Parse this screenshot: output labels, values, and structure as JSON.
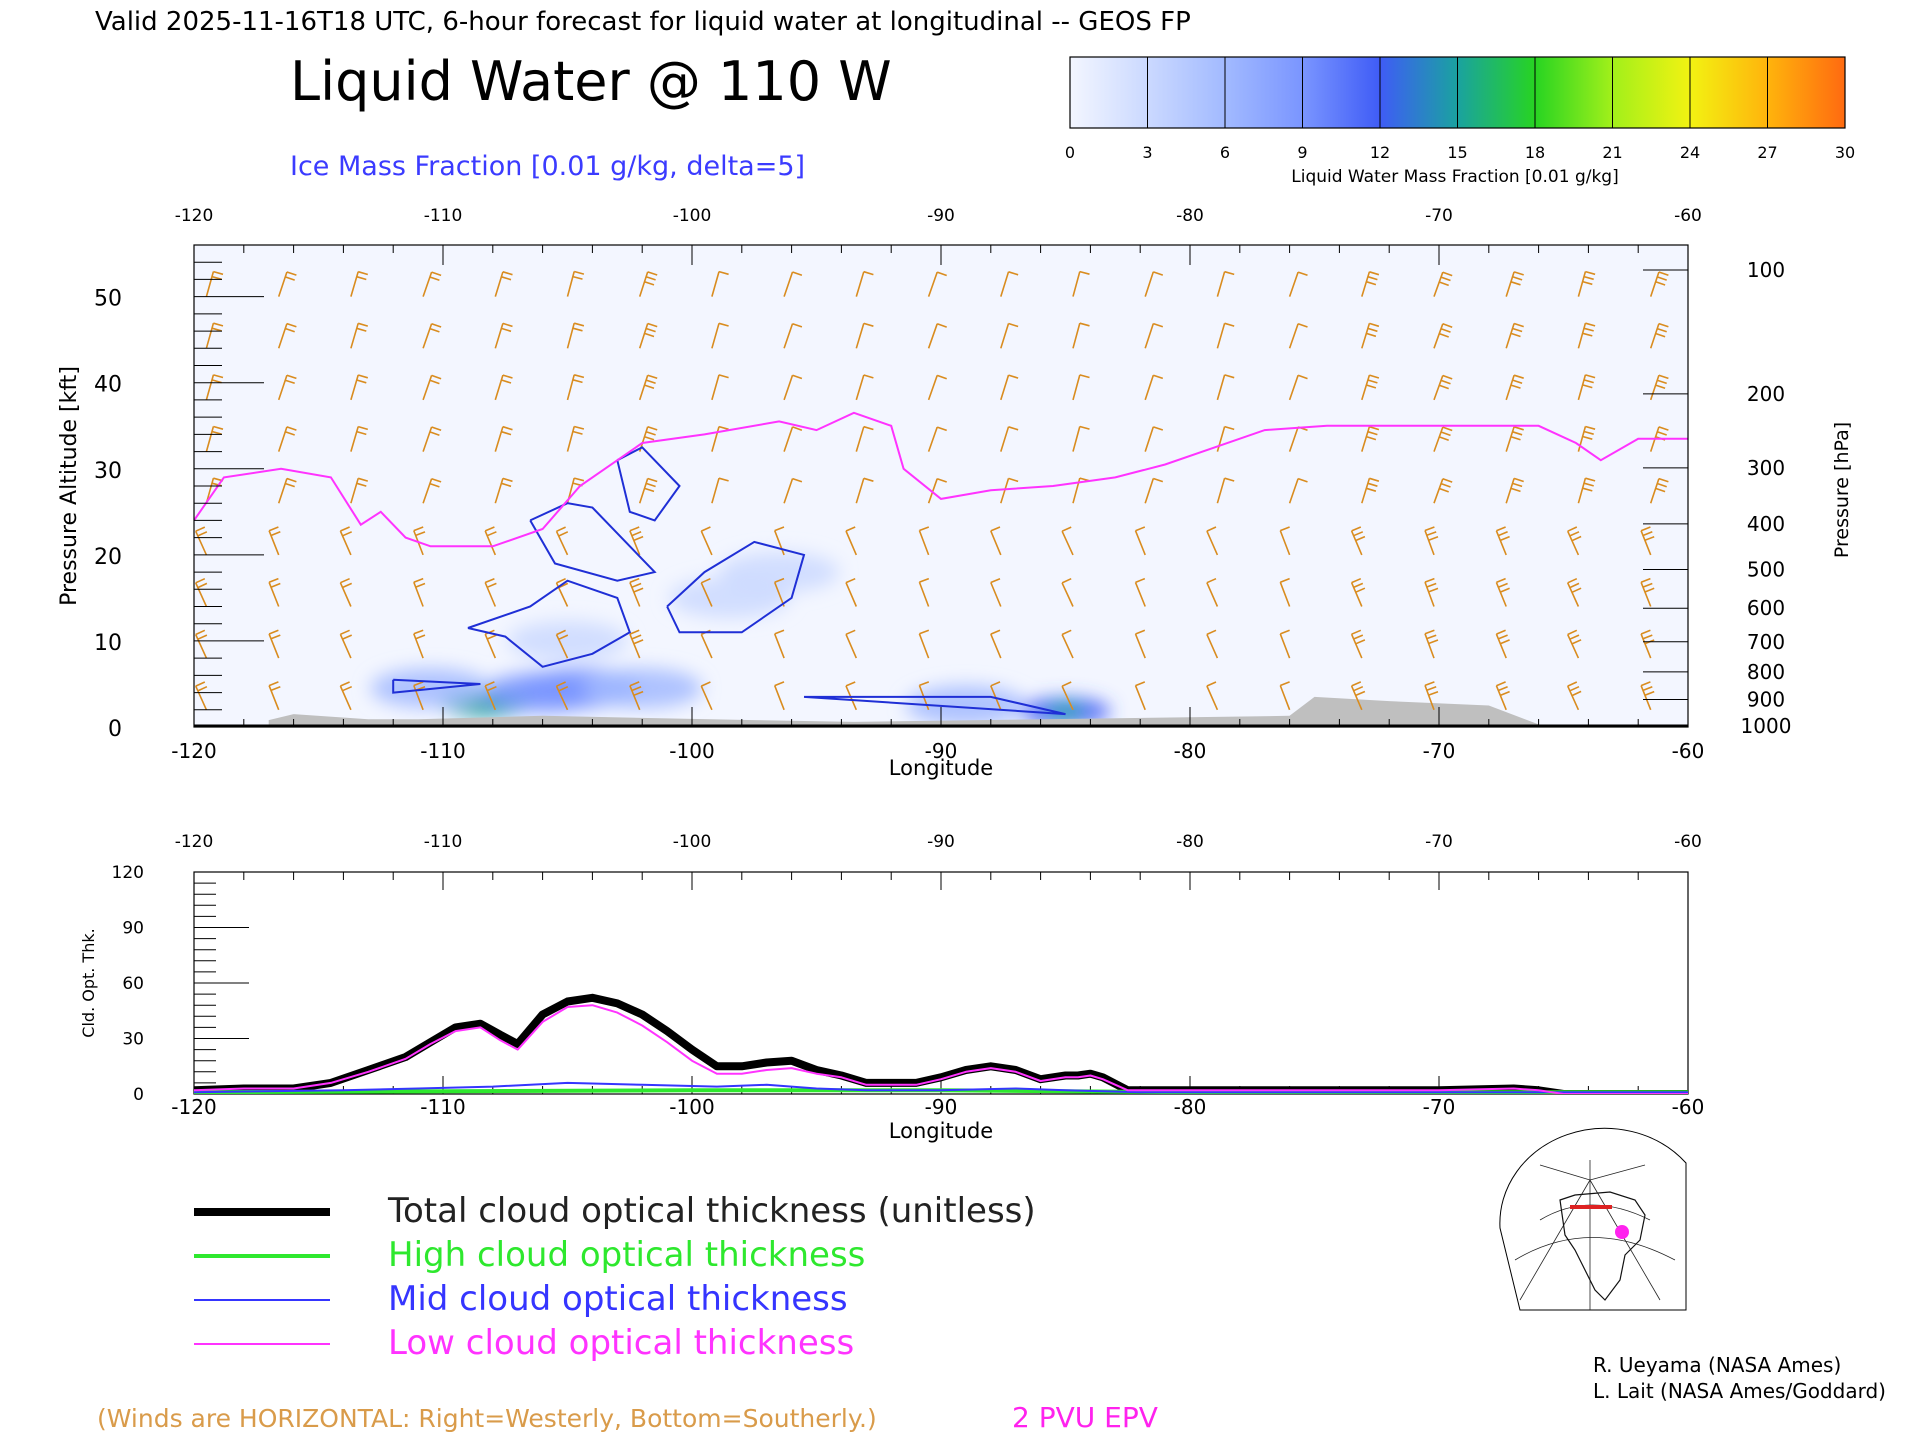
{
  "header": {
    "valid_line": "Valid 2025-11-16T18 UTC, 6-hour forecast for liquid water at longitudinal -- GEOS FP",
    "title": "Liquid Water @ 110 W",
    "ice_label": "Ice Mass Fraction [0.01 g/kg, delta=5]"
  },
  "colorbar": {
    "ticks": [
      "0",
      "3",
      "6",
      "9",
      "12",
      "15",
      "18",
      "21",
      "24",
      "27",
      "30"
    ],
    "label": "Liquid Water Mass Fraction [0.01 g/kg]",
    "colors": [
      "#f3f6ff",
      "#cbd9ff",
      "#a2baff",
      "#7a95ff",
      "#3f5cf6",
      "#1aa2a0",
      "#27d422",
      "#a2f01a",
      "#f2f212",
      "#ffb40c",
      "#ff6a10"
    ]
  },
  "footer": {
    "winds_note": "(Winds are HORIZONTAL: Right=Westerly, Bottom=Southerly.)",
    "epv_label": "2 PVU EPV",
    "credit1": "R. Ueyama (NASA Ames)",
    "credit2": "L. Lait (NASA Ames/Goddard)"
  },
  "legend": [
    {
      "label": "Total cloud optical thickness (unitless)",
      "color": "#000000"
    },
    {
      "label": "High cloud optical thickness",
      "color": "#2ee82e"
    },
    {
      "label": "Mid cloud optical thickness",
      "color": "#3535ff"
    },
    {
      "label": "Low cloud optical thickness",
      "color": "#ff33ff"
    }
  ],
  "colors": {
    "wind": "#d98c1f",
    "epv": "#ff33ff",
    "ice": "#1f2fd6",
    "terrain": "#bfbfbf"
  },
  "chart_data": [
    {
      "type": "heatmap",
      "title": "Liquid Water @ 110 W",
      "xlabel": "Longitude",
      "ylabel": "Pressure Altitude [kft]",
      "y2label": "Pressure [hPa]",
      "xlim": [
        -120,
        -60
      ],
      "ylim": [
        0,
        56
      ],
      "x_ticks": [
        "-120",
        "-110",
        "-100",
        "-90",
        "-80",
        "-70",
        "-60"
      ],
      "y_ticks": [
        "0",
        "10",
        "20",
        "30",
        "40",
        "50"
      ],
      "pressure_ticks": [
        "100",
        "200",
        "300",
        "400",
        "500",
        "600",
        "700",
        "800",
        "900",
        "1000"
      ],
      "epv_2pvu_kft": [
        [
          -120,
          24
        ],
        [
          -118.8,
          29
        ],
        [
          -116.5,
          30
        ],
        [
          -114.5,
          29
        ],
        [
          -113.3,
          23.5
        ],
        [
          -112.5,
          25
        ],
        [
          -111.5,
          22
        ],
        [
          -110.5,
          21
        ],
        [
          -108,
          21
        ],
        [
          -106,
          23
        ],
        [
          -104.5,
          28
        ],
        [
          -102,
          33
        ],
        [
          -99.5,
          34
        ],
        [
          -96.5,
          35.5
        ],
        [
          -95,
          34.5
        ],
        [
          -93.5,
          36.5
        ],
        [
          -92,
          35
        ],
        [
          -91.5,
          30
        ],
        [
          -90,
          26.5
        ],
        [
          -88,
          27.5
        ],
        [
          -85.5,
          28
        ],
        [
          -83,
          29
        ],
        [
          -81,
          30.5
        ],
        [
          -79,
          32.5
        ],
        [
          -77,
          34.5
        ],
        [
          -74.5,
          35
        ],
        [
          -70,
          35
        ],
        [
          -66,
          35
        ],
        [
          -64.5,
          33
        ],
        [
          -63.5,
          31
        ],
        [
          -62,
          33.5
        ],
        [
          -60,
          33.5
        ]
      ],
      "ice_contours_kft": [
        [
          [
            -109,
            11.5
          ],
          [
            -106.5,
            14
          ],
          [
            -105,
            17
          ],
          [
            -103,
            15
          ],
          [
            -102.5,
            11
          ],
          [
            -104,
            8.5
          ],
          [
            -106,
            7
          ],
          [
            -107.5,
            10.5
          ],
          [
            -109,
            11.5
          ]
        ],
        [
          [
            -106.5,
            24
          ],
          [
            -105,
            26
          ],
          [
            -104,
            25.5
          ],
          [
            -103,
            22.5
          ],
          [
            -101.5,
            18
          ],
          [
            -103,
            17
          ],
          [
            -105.5,
            19
          ],
          [
            -106.5,
            24
          ]
        ],
        [
          [
            -103,
            31
          ],
          [
            -102,
            32.5
          ],
          [
            -100.5,
            28
          ],
          [
            -101.5,
            24
          ],
          [
            -102.5,
            25
          ],
          [
            -103,
            31
          ]
        ],
        [
          [
            -101,
            14
          ],
          [
            -99.5,
            18
          ],
          [
            -97.5,
            21.5
          ],
          [
            -95.5,
            20
          ],
          [
            -96,
            15
          ],
          [
            -98,
            11
          ],
          [
            -100.5,
            11
          ],
          [
            -101,
            14
          ]
        ],
        [
          [
            -112,
            5.5
          ],
          [
            -108.5,
            5
          ],
          [
            -112,
            4
          ],
          [
            -112,
            5.5
          ]
        ],
        [
          [
            -95.5,
            3.5
          ],
          [
            -88,
            3.5
          ],
          [
            -85,
            1.5
          ],
          [
            -95.5,
            3.5
          ]
        ]
      ],
      "liquid_blobs": [
        {
          "lon": -108.3,
          "kft": 2.8,
          "value": 14
        },
        {
          "lon": -106,
          "kft": 4,
          "value": 9
        },
        {
          "lon": -104.5,
          "kft": 4.5,
          "value": 8
        },
        {
          "lon": -102,
          "kft": 4.5,
          "value": 6
        },
        {
          "lon": -110.5,
          "kft": 4.5,
          "value": 5
        },
        {
          "lon": -105,
          "kft": 10,
          "value": 3
        },
        {
          "lon": -98.5,
          "kft": 15,
          "value": 3
        },
        {
          "lon": -96.5,
          "kft": 18,
          "value": 2
        },
        {
          "lon": -89,
          "kft": 2.5,
          "value": 6
        },
        {
          "lon": -85,
          "kft": 1.8,
          "value": 12
        }
      ],
      "terrain_kft": [
        [
          -117,
          0.8
        ],
        [
          -116,
          1.5
        ],
        [
          -113,
          0.9
        ],
        [
          -111,
          0.9
        ],
        [
          -106,
          1.3
        ],
        [
          -97.5,
          0.8
        ],
        [
          -93.5,
          0.6
        ],
        [
          -76,
          1.3
        ],
        [
          -75,
          3.5
        ],
        [
          -72,
          3
        ],
        [
          -68,
          2.5
        ],
        [
          -66,
          0.3
        ]
      ]
    },
    {
      "type": "line",
      "xlabel": "Longitude",
      "ylabel": "Cld. Opt. Thk.",
      "xlim": [
        -120,
        -60
      ],
      "ylim": [
        0,
        120
      ],
      "x_ticks": [
        "-120",
        "-110",
        "-100",
        "-90",
        "-80",
        "-70",
        "-60"
      ],
      "y_ticks": [
        "0",
        "30",
        "60",
        "90",
        "120"
      ],
      "series": [
        {
          "name": "Total cloud optical thickness (unitless)",
          "x": [
            -120,
            -118,
            -116,
            -114.5,
            -113,
            -111.5,
            -110.5,
            -109.5,
            -108.5,
            -107.7,
            -107,
            -106,
            -105,
            -104,
            -103,
            -102,
            -101,
            -100,
            -99,
            -98,
            -97,
            -96,
            -95,
            -94,
            -93,
            -92,
            -91,
            -90,
            -89,
            -88,
            -87,
            -86,
            -85,
            -84.5,
            -84,
            -83.5,
            -82.5,
            -80,
            -70,
            -67,
            -66,
            -65,
            -60
          ],
          "y": [
            2,
            3,
            3,
            6,
            13,
            20,
            28,
            36,
            38,
            32,
            27,
            43,
            50,
            52,
            49,
            43,
            34,
            24,
            15,
            15,
            17,
            18,
            13,
            10,
            6,
            6,
            6,
            9,
            13,
            15,
            13,
            8,
            10,
            10,
            11,
            9,
            2,
            2,
            2,
            3,
            2,
            0,
            0
          ]
        },
        {
          "name": "High cloud optical thickness",
          "x": [
            -120,
            -100,
            -90,
            -80,
            -70,
            -60
          ],
          "y": [
            1,
            2,
            2,
            1,
            1,
            1
          ]
        },
        {
          "name": "Mid cloud optical thickness",
          "x": [
            -120,
            -114,
            -111,
            -108,
            -105,
            -102,
            -99,
            -97,
            -95,
            -93,
            -90,
            -87,
            -85,
            -82,
            -60
          ],
          "y": [
            1,
            2,
            3,
            4,
            6,
            5,
            4,
            5,
            3,
            2,
            2,
            3,
            2,
            1,
            1
          ]
        },
        {
          "name": "Low cloud optical thickness",
          "x": [
            -120,
            -118,
            -116,
            -114.5,
            -113,
            -111.5,
            -110.5,
            -109.5,
            -108.5,
            -107.7,
            -107,
            -106,
            -105,
            -104,
            -103,
            -102,
            -101,
            -100,
            -99,
            -98,
            -97,
            -96,
            -95,
            -94,
            -93,
            -92,
            -91,
            -90,
            -89,
            -88,
            -87,
            -86,
            -85,
            -84.5,
            -84,
            -83.5,
            -82.5,
            -80,
            -70,
            -67,
            -66,
            -65,
            -60
          ],
          "y": [
            2,
            3,
            3,
            6,
            12,
            19,
            27,
            34,
            36,
            29,
            24,
            39,
            47,
            48,
            44,
            37,
            28,
            18,
            11,
            11,
            13,
            14,
            11,
            9,
            5,
            5,
            5,
            8,
            12,
            14,
            12,
            7,
            9,
            9,
            10,
            8,
            2,
            2,
            2,
            3,
            2,
            0,
            0
          ]
        }
      ]
    }
  ]
}
